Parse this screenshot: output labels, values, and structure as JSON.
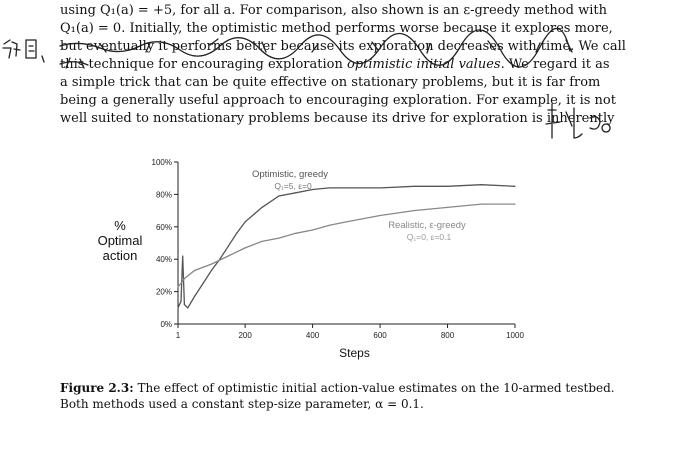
{
  "body_text": {
    "line0": "using Q₁(a) = +5, for all a. For comparison, also shown is an ε-greedy method with",
    "line1": "Q₁(a) = 0. Initially, the optimistic method performs worse because it explores more,",
    "line2": "but eventually it performs better because its exploration decreases with time. We call",
    "line3_pre": "this technique for encouraging exploration ",
    "line3_em": "optimistic initial values",
    "line3_post": ". We regard it as",
    "line4": "a simple trick that can be quite effective on stationary problems, but it is far from",
    "line5": "being a generally useful approach to encouraging exploration. For example, it is not",
    "line6": "well suited to nonstationary problems because its drive for exploration is inherently"
  },
  "handwriting_color": "#222222",
  "chart_data": {
    "type": "line",
    "xlabel": "Steps",
    "ylabel_lines": [
      "%",
      "Optimal",
      "action"
    ],
    "xlim": [
      1,
      1000
    ],
    "ylim": [
      0,
      100
    ],
    "x_ticks": [
      1,
      200,
      400,
      600,
      800,
      1000
    ],
    "x_tick_labels": [
      "1",
      "200",
      "400",
      "600",
      "800",
      "1000"
    ],
    "y_ticks": [
      0,
      20,
      40,
      60,
      80,
      100
    ],
    "y_tick_labels": [
      "0%",
      "20%",
      "40%",
      "60%",
      "80%",
      "100%"
    ],
    "grid": false,
    "series": [
      {
        "name": "Optimistic, greedy",
        "params": "Q₁=5, ε=0",
        "color": "#555555",
        "x": [
          1,
          10,
          15,
          20,
          30,
          50,
          75,
          100,
          125,
          150,
          175,
          200,
          250,
          300,
          350,
          400,
          450,
          500,
          600,
          700,
          800,
          900,
          1000
        ],
        "y": [
          10,
          14,
          42,
          12,
          10,
          17,
          25,
          33,
          40,
          48,
          56,
          63,
          72,
          79,
          81,
          83,
          84,
          84,
          84,
          85,
          85,
          86,
          85
        ]
      },
      {
        "name": "Realistic, ε-greedy",
        "params": "Q₁=0, ε=0.1",
        "color": "#888888",
        "x": [
          1,
          10,
          20,
          50,
          100,
          150,
          200,
          250,
          300,
          350,
          400,
          450,
          500,
          600,
          700,
          800,
          900,
          1000
        ],
        "y": [
          23,
          25,
          28,
          33,
          37,
          42,
          47,
          51,
          53,
          56,
          58,
          61,
          63,
          67,
          70,
          72,
          74,
          74
        ]
      }
    ]
  },
  "caption": {
    "label": "Figure 2.3:",
    "text": " The effect of optimistic initial action-value estimates on the 10-armed testbed.",
    "line2": "Both methods used a constant step-size parameter, α = 0.1."
  }
}
